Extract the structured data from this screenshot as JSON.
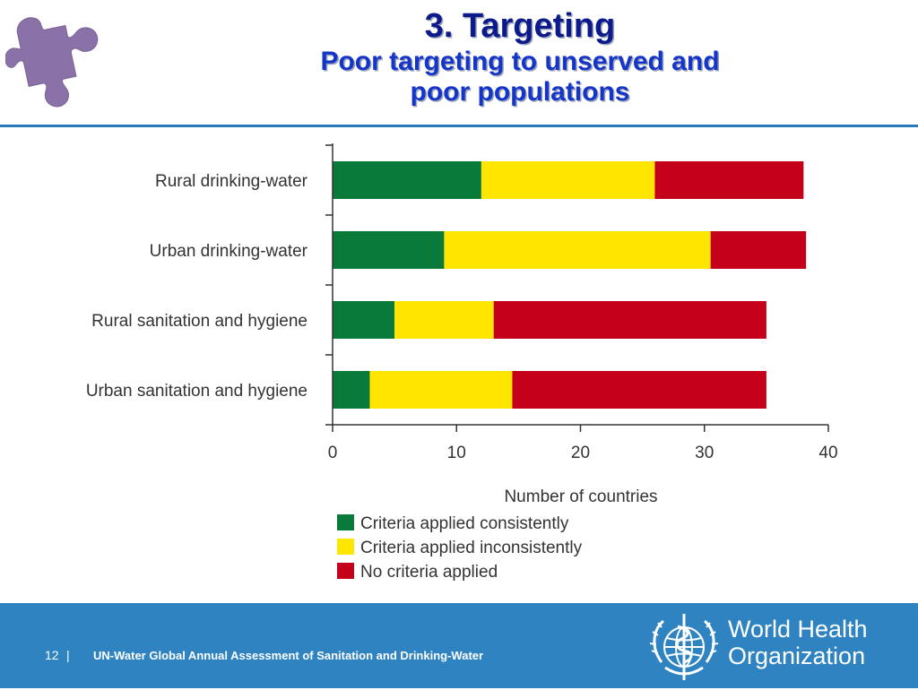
{
  "slide": {
    "title": "3. Targeting",
    "subtitle": "Poor targeting to unserved and poor populations",
    "puzzle_icon": "puzzle-piece-icon",
    "colors": {
      "title": "#0d1a8c",
      "subtitle": "#1535c9",
      "footer": "#2f83c1",
      "rule": "#2a7ab8",
      "puzzle": "#8a72a8"
    }
  },
  "footer": {
    "page_number": "12",
    "separator": "|",
    "text": "UN-Water Global Annual Assessment of Sanitation and Drinking-Water",
    "org_line1": "World Health",
    "org_line2": "Organization",
    "emblem_icon": "who-emblem-icon"
  },
  "chart_data": {
    "type": "bar",
    "orientation": "horizontal",
    "stacked": true,
    "categories": [
      "Rural drinking-water",
      "Urban drinking-water",
      "Rural sanitation and hygiene",
      "Urban sanitation and hygiene"
    ],
    "series": [
      {
        "name": "Criteria applied consistently",
        "color": "#0a7a3a",
        "values": [
          12,
          9,
          5,
          3
        ]
      },
      {
        "name": "Criteria applied inconsistently",
        "color": "#ffe600",
        "values": [
          14,
          21.5,
          8,
          11.5
        ]
      },
      {
        "name": "No criteria applied",
        "color": "#c4001a",
        "values": [
          12,
          7.7,
          22,
          20.5
        ]
      }
    ],
    "xlabel": "Number of countries",
    "ylabel": "",
    "xlim": [
      0,
      40
    ],
    "xticks": [
      "0",
      "10",
      "20",
      "30",
      "40"
    ],
    "grid": false,
    "legend_position": "bottom"
  }
}
